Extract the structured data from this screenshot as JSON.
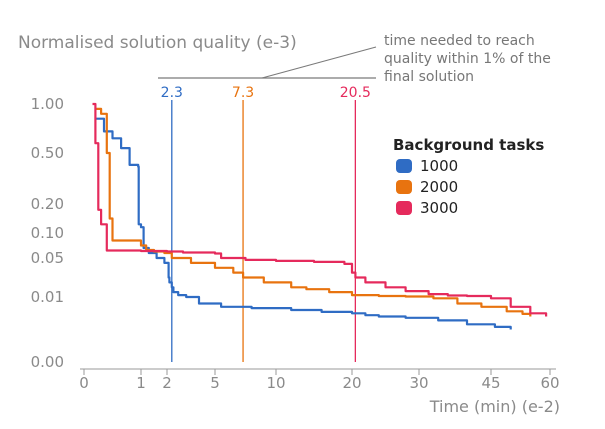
{
  "chart_data": {
    "type": "line",
    "title": "Normalised solution quality (e-3)",
    "xlabel": "Time (min) (e-2)",
    "ylabel": "",
    "x_ticks": [
      "0",
      "1",
      "2",
      "5",
      "10",
      "20",
      "30",
      "45",
      "60"
    ],
    "y_ticks": [
      "1.00",
      "0.50",
      "0.20",
      "0.10",
      "0.05",
      "0.01",
      "0.00"
    ],
    "legend": {
      "title": "Background tasks",
      "position": "right"
    },
    "annotation": "time needed to reach quality within 1% of the final solution",
    "markers": [
      {
        "label": "2.3",
        "x": 2.3,
        "color": "#2f6cc4"
      },
      {
        "label": "7.3",
        "x": 7.3,
        "color": "#e8730f"
      },
      {
        "label": "20.5",
        "x": 20.5,
        "color": "#e52a5c"
      }
    ],
    "series": [
      {
        "name": "1000",
        "color": "#2f6cc4",
        "points": [
          [
            0.2,
            0.85
          ],
          [
            0.35,
            0.72
          ],
          [
            0.5,
            0.65
          ],
          [
            0.65,
            0.55
          ],
          [
            0.8,
            0.43
          ],
          [
            0.95,
            0.42
          ],
          [
            0.96,
            0.13
          ],
          [
            1.0,
            0.12
          ],
          [
            1.1,
            0.07
          ],
          [
            1.3,
            0.06
          ],
          [
            1.6,
            0.05
          ],
          [
            1.9,
            0.045
          ],
          [
            2.1,
            0.03
          ],
          [
            2.15,
            0.025
          ],
          [
            2.3,
            0.02
          ],
          [
            2.4,
            0.015
          ],
          [
            2.7,
            0.012
          ],
          [
            3.2,
            0.01
          ],
          [
            4,
            0.009
          ],
          [
            5.5,
            0.0085
          ],
          [
            8,
            0.0083
          ],
          [
            12,
            0.008
          ],
          [
            16,
            0.0077
          ],
          [
            20,
            0.0075
          ],
          [
            22,
            0.0072
          ],
          [
            24,
            0.007
          ],
          [
            28,
            0.0068
          ],
          [
            34,
            0.0064
          ],
          [
            40,
            0.0058
          ],
          [
            46,
            0.0054
          ],
          [
            50,
            0.005
          ]
        ]
      },
      {
        "name": "2000",
        "color": "#e8730f",
        "points": [
          [
            0.2,
            0.95
          ],
          [
            0.3,
            0.9
          ],
          [
            0.4,
            0.5
          ],
          [
            0.45,
            0.15
          ],
          [
            0.5,
            0.085
          ],
          [
            0.8,
            0.085
          ],
          [
            1.0,
            0.075
          ],
          [
            1.2,
            0.066
          ],
          [
            1.5,
            0.063
          ],
          [
            1.9,
            0.06
          ],
          [
            2.3,
            0.05
          ],
          [
            3.5,
            0.045
          ],
          [
            5,
            0.04
          ],
          [
            6.5,
            0.035
          ],
          [
            7.3,
            0.03
          ],
          [
            9,
            0.025
          ],
          [
            12,
            0.02
          ],
          [
            14,
            0.018
          ],
          [
            17,
            0.015
          ],
          [
            20,
            0.012
          ],
          [
            24,
            0.011
          ],
          [
            28,
            0.0105
          ],
          [
            33,
            0.0098
          ],
          [
            38,
            0.009
          ],
          [
            43,
            0.0085
          ],
          [
            49,
            0.0078
          ],
          [
            53,
            0.0074
          ],
          [
            55,
            0.007
          ]
        ]
      },
      {
        "name": "3000",
        "color": "#e52a5c",
        "points": [
          [
            0.15,
            1.0
          ],
          [
            0.2,
            0.6
          ],
          [
            0.25,
            0.18
          ],
          [
            0.3,
            0.13
          ],
          [
            0.4,
            0.065
          ],
          [
            0.6,
            0.065
          ],
          [
            1.0,
            0.064
          ],
          [
            1.5,
            0.064
          ],
          [
            2.0,
            0.063
          ],
          [
            3,
            0.061
          ],
          [
            5,
            0.059
          ],
          [
            5.5,
            0.05
          ],
          [
            7.5,
            0.048
          ],
          [
            10,
            0.047
          ],
          [
            15,
            0.046
          ],
          [
            19,
            0.044
          ],
          [
            20,
            0.035
          ],
          [
            20.5,
            0.03
          ],
          [
            22,
            0.025
          ],
          [
            25,
            0.02
          ],
          [
            28,
            0.016
          ],
          [
            32,
            0.013
          ],
          [
            36,
            0.0115
          ],
          [
            40,
            0.011
          ],
          [
            45,
            0.0098
          ],
          [
            50,
            0.0085
          ],
          [
            55,
            0.0075
          ],
          [
            59,
            0.007
          ]
        ]
      }
    ]
  }
}
